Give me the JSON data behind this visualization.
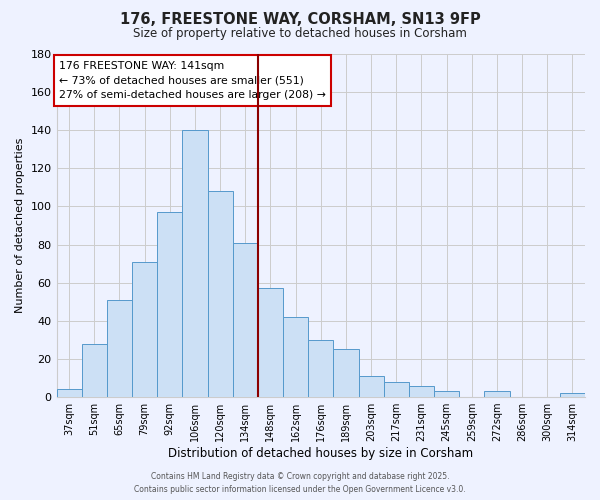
{
  "title": "176, FREESTONE WAY, CORSHAM, SN13 9FP",
  "subtitle": "Size of property relative to detached houses in Corsham",
  "xlabel": "Distribution of detached houses by size in Corsham",
  "ylabel": "Number of detached properties",
  "categories": [
    "37sqm",
    "51sqm",
    "65sqm",
    "79sqm",
    "92sqm",
    "106sqm",
    "120sqm",
    "134sqm",
    "148sqm",
    "162sqm",
    "176sqm",
    "189sqm",
    "203sqm",
    "217sqm",
    "231sqm",
    "245sqm",
    "259sqm",
    "272sqm",
    "286sqm",
    "300sqm",
    "314sqm"
  ],
  "values": [
    4,
    28,
    51,
    71,
    97,
    140,
    108,
    81,
    57,
    42,
    30,
    25,
    11,
    8,
    6,
    3,
    0,
    3,
    0,
    0,
    2
  ],
  "bar_color": "#cce0f5",
  "bar_edge_color": "#5599cc",
  "vline_x_index": 7,
  "vline_color": "#8b0000",
  "annotation_title": "176 FREESTONE WAY: 141sqm",
  "annotation_line1": "← 73% of detached houses are smaller (551)",
  "annotation_line2": "27% of semi-detached houses are larger (208) →",
  "annotation_box_color": "#ffffff",
  "annotation_box_edge": "#cc0000",
  "ylim": [
    0,
    180
  ],
  "yticks": [
    0,
    20,
    40,
    60,
    80,
    100,
    120,
    140,
    160,
    180
  ],
  "bg_color": "#eef2ff",
  "grid_color": "#cccccc",
  "footer_line1": "Contains HM Land Registry data © Crown copyright and database right 2025.",
  "footer_line2": "Contains public sector information licensed under the Open Government Licence v3.0."
}
